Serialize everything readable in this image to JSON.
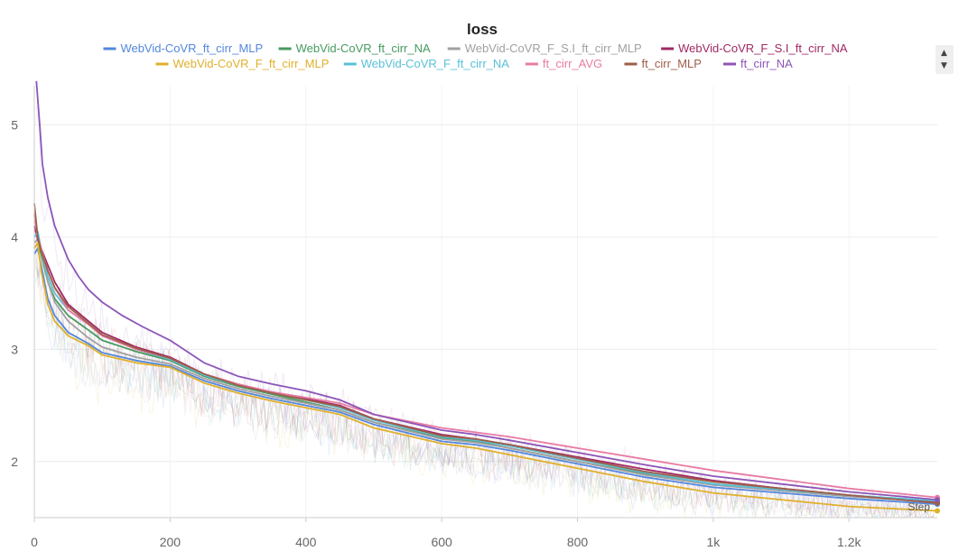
{
  "chart_data": {
    "type": "line",
    "title": "loss",
    "xlabel": "",
    "ylabel": "",
    "step_label": "Step",
    "xlim": [
      0,
      1330
    ],
    "ylim": [
      1.5,
      5.35
    ],
    "xticks": [
      0,
      200,
      400,
      600,
      800,
      1000,
      1200
    ],
    "xtick_labels": [
      "0",
      "200",
      "400",
      "600",
      "800",
      "1k",
      "1.2k"
    ],
    "yticks": [
      2,
      3,
      4,
      5
    ],
    "ytick_labels": [
      "2",
      "3",
      "4",
      "5"
    ],
    "grid": true,
    "legend_position": "top",
    "series": [
      {
        "name": "WebVid-CoVR_ft_cirr_MLP",
        "color": "#5387dd",
        "x": [
          0,
          5,
          10,
          20,
          30,
          50,
          80,
          100,
          150,
          200,
          250,
          300,
          350,
          400,
          450,
          500,
          600,
          650,
          700,
          800,
          900,
          1000,
          1100,
          1200,
          1330
        ],
        "y": [
          3.85,
          3.9,
          3.75,
          3.45,
          3.3,
          3.15,
          3.05,
          2.97,
          2.9,
          2.85,
          2.72,
          2.63,
          2.56,
          2.5,
          2.44,
          2.33,
          2.18,
          2.15,
          2.1,
          1.98,
          1.86,
          1.77,
          1.72,
          1.67,
          1.62
        ]
      },
      {
        "name": "WebVid-CoVR_ft_cirr_NA",
        "color": "#479a5f",
        "x": [
          0,
          5,
          10,
          20,
          30,
          50,
          80,
          100,
          150,
          200,
          250,
          300,
          350,
          400,
          450,
          500,
          600,
          650,
          700,
          800,
          900,
          1000,
          1100,
          1200,
          1330
        ],
        "y": [
          3.9,
          3.95,
          3.85,
          3.6,
          3.45,
          3.3,
          3.17,
          3.08,
          2.98,
          2.9,
          2.76,
          2.67,
          2.6,
          2.53,
          2.46,
          2.35,
          2.21,
          2.18,
          2.12,
          2.0,
          1.89,
          1.8,
          1.74,
          1.69,
          1.64
        ]
      },
      {
        "name": "WebVid-CoVR_F_S.I_ft_cirr_MLP",
        "color": "#a1a1a1",
        "x": [
          0,
          5,
          10,
          20,
          30,
          50,
          80,
          100,
          150,
          200,
          250,
          300,
          350,
          400,
          450,
          500,
          600,
          650,
          700,
          800,
          900,
          1000,
          1100,
          1200,
          1330
        ],
        "y": [
          3.95,
          3.98,
          3.9,
          3.6,
          3.42,
          3.25,
          3.1,
          3.02,
          2.93,
          2.87,
          2.74,
          2.65,
          2.58,
          2.52,
          2.46,
          2.35,
          2.2,
          2.17,
          2.12,
          2.0,
          1.88,
          1.79,
          1.74,
          1.69,
          1.64
        ]
      },
      {
        "name": "WebVid-CoVR_F_S.I_ft_cirr_NA",
        "color": "#a12864",
        "x": [
          0,
          5,
          10,
          20,
          30,
          50,
          80,
          100,
          150,
          200,
          250,
          300,
          350,
          400,
          450,
          500,
          600,
          650,
          700,
          800,
          900,
          1000,
          1100,
          1200,
          1330
        ],
        "y": [
          4.1,
          3.98,
          3.9,
          3.75,
          3.6,
          3.4,
          3.25,
          3.15,
          3.02,
          2.93,
          2.78,
          2.68,
          2.62,
          2.56,
          2.5,
          2.38,
          2.24,
          2.2,
          2.15,
          2.04,
          1.93,
          1.83,
          1.76,
          1.7,
          1.64
        ]
      },
      {
        "name": "WebVid-CoVR_F_ft_cirr_MLP",
        "color": "#e0b02c",
        "x": [
          0,
          5,
          10,
          20,
          30,
          50,
          80,
          100,
          150,
          200,
          250,
          300,
          350,
          400,
          450,
          500,
          600,
          650,
          700,
          800,
          900,
          1000,
          1100,
          1200,
          1330
        ],
        "y": [
          3.9,
          3.95,
          3.7,
          3.4,
          3.25,
          3.12,
          3.03,
          2.95,
          2.88,
          2.84,
          2.7,
          2.61,
          2.54,
          2.48,
          2.42,
          2.3,
          2.16,
          2.12,
          2.06,
          1.94,
          1.82,
          1.72,
          1.66,
          1.6,
          1.56
        ]
      },
      {
        "name": "WebVid-CoVR_F_ft_cirr_NA",
        "color": "#58c1d8",
        "x": [
          0,
          5,
          10,
          20,
          30,
          50,
          80,
          100,
          150,
          200,
          250,
          300,
          350,
          400,
          450,
          500,
          600,
          650,
          700,
          800,
          900,
          1000,
          1100,
          1200,
          1330
        ],
        "y": [
          4.0,
          4.05,
          3.9,
          3.65,
          3.5,
          3.35,
          3.22,
          3.12,
          3.0,
          2.91,
          2.77,
          2.68,
          2.61,
          2.55,
          2.48,
          2.37,
          2.22,
          2.19,
          2.14,
          2.02,
          1.9,
          1.8,
          1.75,
          1.7,
          1.65
        ]
      },
      {
        "name": "ft_cirr_AVG",
        "color": "#e87ba4",
        "x": [
          0,
          5,
          10,
          20,
          30,
          50,
          80,
          100,
          150,
          200,
          250,
          300,
          350,
          400,
          450,
          500,
          600,
          650,
          700,
          800,
          900,
          1000,
          1100,
          1200,
          1330
        ],
        "y": [
          4.2,
          4.0,
          3.9,
          3.7,
          3.55,
          3.35,
          3.22,
          3.12,
          3.0,
          2.92,
          2.78,
          2.69,
          2.62,
          2.57,
          2.52,
          2.42,
          2.3,
          2.26,
          2.22,
          2.12,
          2.02,
          1.92,
          1.84,
          1.76,
          1.68
        ]
      },
      {
        "name": "ft_cirr_MLP",
        "color": "#9e5e48",
        "x": [
          0,
          5,
          10,
          20,
          30,
          50,
          80,
          100,
          150,
          200,
          250,
          300,
          350,
          400,
          450,
          500,
          600,
          650,
          700,
          800,
          900,
          1000,
          1100,
          1200,
          1330
        ],
        "y": [
          4.3,
          4.0,
          3.88,
          3.7,
          3.55,
          3.38,
          3.23,
          3.13,
          3.01,
          2.92,
          2.78,
          2.68,
          2.61,
          2.55,
          2.49,
          2.38,
          2.23,
          2.2,
          2.15,
          2.03,
          1.91,
          1.82,
          1.76,
          1.7,
          1.63
        ]
      },
      {
        "name": "ft_cirr_NA",
        "color": "#8c55b8",
        "x": [
          3,
          8,
          12,
          20,
          30,
          40,
          50,
          65,
          80,
          100,
          130,
          160,
          200,
          250,
          300,
          350,
          400,
          450,
          500,
          600,
          650,
          700,
          800,
          900,
          1000,
          1100,
          1200,
          1330
        ],
        "y": [
          5.4,
          5.0,
          4.65,
          4.35,
          4.1,
          3.95,
          3.8,
          3.65,
          3.53,
          3.42,
          3.3,
          3.2,
          3.08,
          2.88,
          2.76,
          2.69,
          2.63,
          2.55,
          2.42,
          2.28,
          2.24,
          2.19,
          2.08,
          1.97,
          1.87,
          1.8,
          1.73,
          1.66
        ]
      }
    ]
  }
}
